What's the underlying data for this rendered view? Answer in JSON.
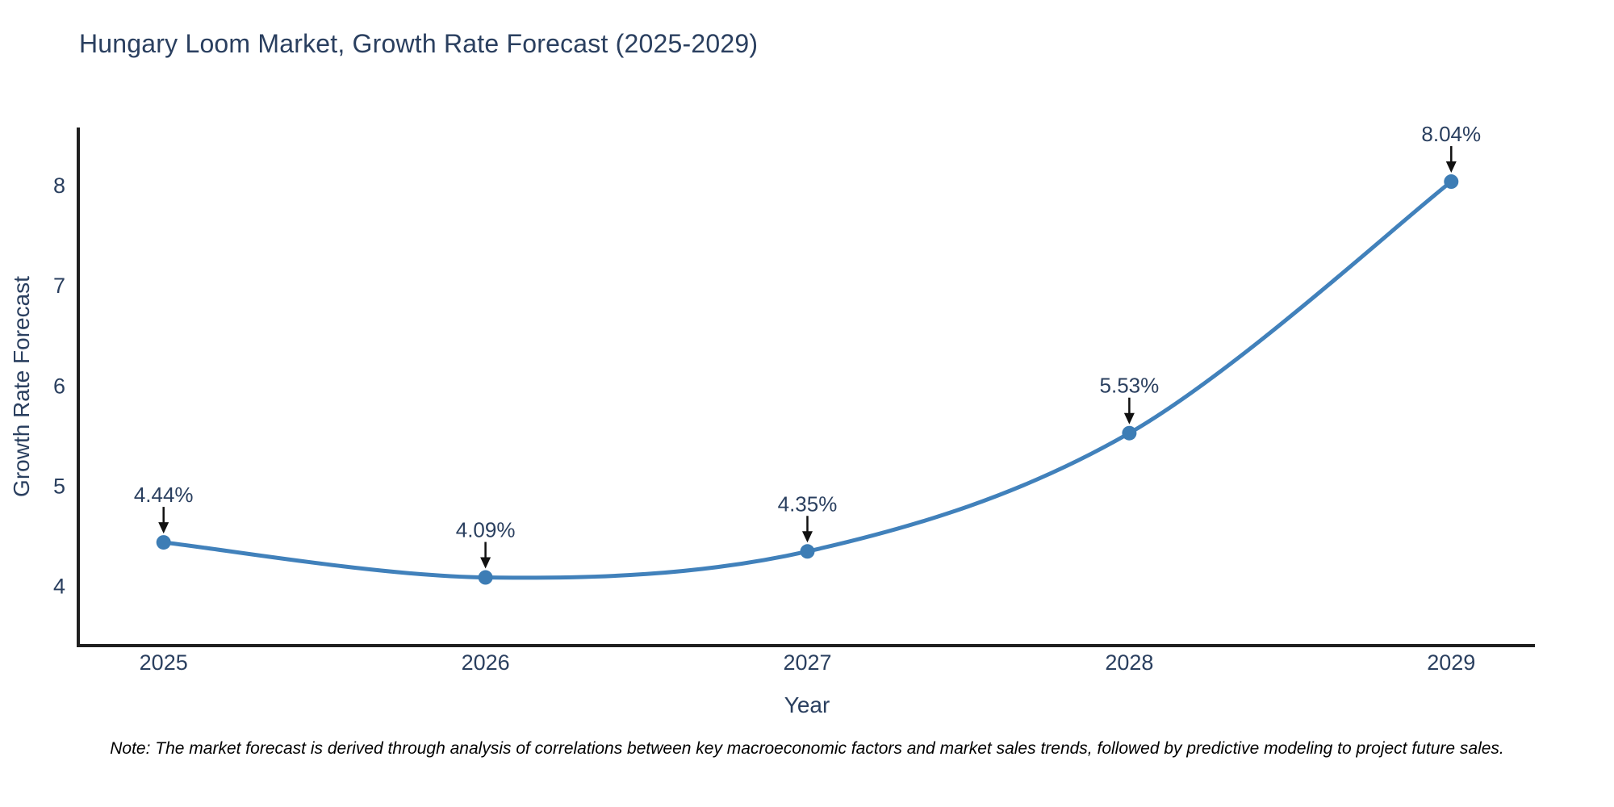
{
  "title": "Hungary Loom Market, Growth Rate Forecast (2025-2029)",
  "note": "Note: The market forecast is derived through analysis of correlations between key macroeconomic factors and market sales trends, followed by predictive modeling to project future sales.",
  "chart_data": {
    "type": "line",
    "title": "Hungary Loom Market, Growth Rate Forecast (2025-2029)",
    "xlabel": "Year",
    "ylabel": "Growth Rate Forecast",
    "categories": [
      "2025",
      "2026",
      "2027",
      "2028",
      "2029"
    ],
    "x": [
      2025,
      2026,
      2027,
      2028,
      2029
    ],
    "values": [
      4.44,
      4.09,
      4.35,
      5.53,
      8.04
    ],
    "point_labels": [
      "4.44%",
      "4.09%",
      "4.35%",
      "5.53%",
      "8.04%"
    ],
    "y_ticks": [
      4,
      5,
      6,
      7,
      8
    ],
    "ylim": [
      3.41,
      8.58
    ],
    "xlim": [
      2024.735,
      2029.26
    ],
    "grid": false,
    "legend": "none",
    "line_shape": "spline",
    "marker": "circle",
    "annotation_style": "label-above-with-down-arrow",
    "colors": {
      "line": "#4181bb",
      "marker": "#3d7db5",
      "arrow": "#111111",
      "spine": "#1f1f1f",
      "text": "#2a3f5f",
      "note_text": "#000000",
      "background": "#ffffff"
    }
  }
}
